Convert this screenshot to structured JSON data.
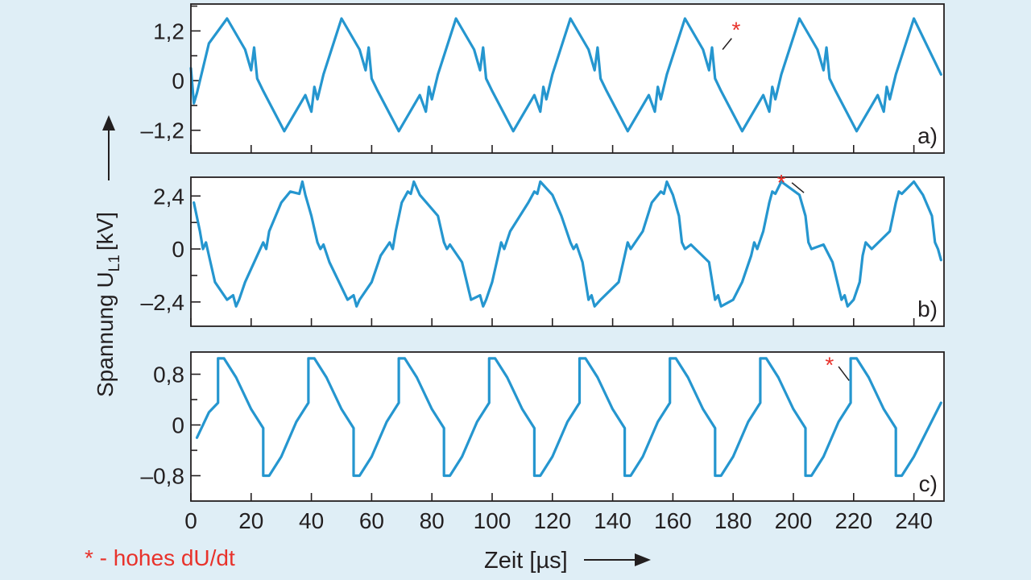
{
  "y_axis_label": "Spannung U",
  "y_axis_label_sub": "L1",
  "y_axis_label_unit": "[kV]",
  "x_axis_label": "Zeit [µs]",
  "footnote": "* - hohes dU/dt",
  "annotation_symbol": "*",
  "colors": {
    "background": "#dfeef6",
    "plot_background": "#ffffff",
    "line": "#2596cf",
    "annotation": "#e8322b",
    "axis": "#231f20"
  },
  "chart_data": [
    {
      "type": "line",
      "panel_label": "a)",
      "xlim": [
        0,
        250
      ],
      "ylim": [
        -1.75,
        1.85
      ],
      "yticks": [
        1.2,
        0,
        -1.2
      ],
      "ytick_labels": [
        "1,2",
        "0",
        "–1,2"
      ],
      "xticks": [
        0,
        20,
        40,
        60,
        80,
        100,
        120,
        140,
        160,
        180,
        200,
        220,
        240
      ],
      "series": [
        {
          "x": [
            0,
            1,
            2,
            6,
            12,
            18,
            20,
            21,
            22,
            24,
            31,
            38,
            40,
            41,
            42,
            44,
            50,
            56,
            58,
            59,
            60,
            62,
            69,
            76,
            78,
            79,
            80,
            82,
            88,
            94,
            96,
            97,
            98,
            100,
            107,
            114,
            116,
            117,
            118,
            120,
            126,
            132,
            134,
            135,
            136,
            138,
            145,
            152,
            154,
            155,
            156,
            158,
            164,
            170,
            172,
            173,
            174,
            176,
            183,
            190,
            192,
            193,
            194,
            196,
            202,
            208,
            210,
            211,
            212,
            214,
            221,
            228,
            230,
            231,
            232,
            234,
            240,
            249
          ],
          "y": [
            0.3,
            -0.55,
            -0.3,
            0.9,
            1.5,
            0.75,
            0.25,
            0.8,
            0.05,
            -0.25,
            -1.22,
            -0.35,
            -0.75,
            -0.15,
            -0.45,
            0.15,
            1.5,
            0.75,
            0.25,
            0.8,
            0.05,
            -0.25,
            -1.22,
            -0.35,
            -0.75,
            -0.15,
            -0.45,
            0.15,
            1.5,
            0.75,
            0.25,
            0.8,
            0.05,
            -0.25,
            -1.22,
            -0.35,
            -0.75,
            -0.15,
            -0.45,
            0.15,
            1.5,
            0.75,
            0.25,
            0.8,
            0.05,
            -0.25,
            -1.22,
            -0.35,
            -0.75,
            -0.15,
            -0.45,
            0.15,
            1.5,
            0.75,
            0.25,
            0.8,
            0.05,
            -0.25,
            -1.22,
            -0.35,
            -0.75,
            -0.15,
            -0.45,
            0.15,
            1.5,
            0.75,
            0.25,
            0.8,
            0.05,
            -0.25,
            -1.22,
            -0.35,
            -0.75,
            -0.15,
            -0.45,
            0.15,
            1.5,
            0.15
          ]
        }
      ],
      "annotations": [
        {
          "text": "*",
          "x": 181,
          "y": 1.28,
          "pointer_from": [
            179.5,
            1.02
          ],
          "pointer_to": [
            176.5,
            0.75
          ]
        }
      ]
    },
    {
      "type": "line",
      "panel_label": "b)",
      "xlim": [
        0,
        250
      ],
      "ylim": [
        -3.5,
        3.25
      ],
      "yticks": [
        2.4,
        0,
        -2.4
      ],
      "ytick_labels": [
        "2,4",
        "0",
        "–2,4"
      ],
      "xticks": [
        0,
        20,
        40,
        60,
        80,
        100,
        120,
        140,
        160,
        180,
        200,
        220,
        240
      ],
      "series": [
        {
          "x": [
            1,
            3,
            4,
            5,
            6,
            8,
            12,
            14,
            15,
            16,
            18,
            22,
            24,
            25,
            26,
            30,
            33,
            36,
            37,
            38,
            40,
            42,
            43,
            44,
            46,
            52,
            54,
            55,
            56,
            60,
            63,
            66,
            67,
            68,
            70,
            72,
            73,
            74,
            76,
            82,
            84,
            85,
            86,
            90,
            93,
            96,
            97,
            98,
            100,
            102,
            103,
            104,
            106,
            112,
            114,
            115,
            116,
            120,
            123,
            126,
            127,
            128,
            130,
            132,
            133,
            134,
            136,
            142,
            144,
            145,
            146,
            150,
            153,
            156,
            157,
            158,
            160,
            162,
            163,
            164,
            166,
            172,
            174,
            175,
            176,
            180,
            183,
            186,
            187,
            188,
            190,
            192,
            193,
            194,
            196,
            202,
            204,
            205,
            206,
            210,
            213,
            216,
            217,
            218,
            220,
            222,
            223,
            224,
            226,
            232,
            234,
            235,
            236,
            240,
            243,
            246,
            247,
            248,
            249
          ],
          "y": [
            2.1,
            0.8,
            0.0,
            0.3,
            -0.3,
            -1.5,
            -2.3,
            -2.1,
            -2.6,
            -2.3,
            -1.5,
            -0.3,
            0.3,
            0.0,
            0.8,
            2.1,
            2.6,
            2.5,
            3.05,
            2.45,
            1.5,
            0.3,
            0.0,
            0.2,
            -0.6,
            -2.3,
            -2.1,
            -2.6,
            -2.3,
            -1.5,
            -0.3,
            0.3,
            0.0,
            0.8,
            2.1,
            2.6,
            2.5,
            3.05,
            2.45,
            1.5,
            0.3,
            0.0,
            0.2,
            -0.6,
            -2.3,
            -2.1,
            -2.6,
            -2.3,
            -1.5,
            -0.3,
            0.3,
            0.0,
            0.8,
            2.1,
            2.6,
            2.5,
            3.05,
            2.45,
            1.5,
            0.3,
            0.0,
            0.2,
            -0.6,
            -2.3,
            -2.1,
            -2.6,
            -2.3,
            -1.5,
            -0.3,
            0.3,
            0.0,
            0.8,
            2.1,
            2.6,
            2.5,
            3.05,
            2.45,
            1.5,
            0.3,
            0.0,
            0.2,
            -0.6,
            -2.3,
            -2.1,
            -2.6,
            -2.3,
            -1.5,
            -0.3,
            0.3,
            0.0,
            0.8,
            2.1,
            2.6,
            2.5,
            3.05,
            2.45,
            1.5,
            0.3,
            0.0,
            0.2,
            -0.6,
            -2.3,
            -2.1,
            -2.6,
            -2.3,
            -1.5,
            -0.3,
            0.3,
            0.0,
            0.8,
            2.1,
            2.6,
            2.5,
            3.05,
            2.45,
            1.5,
            0.3,
            0.0,
            -0.5
          ]
        }
      ],
      "annotations": [
        {
          "text": "*",
          "x": 196,
          "y": 3.1,
          "pointer_from": [
            199.5,
            3.0
          ],
          "pointer_to": [
            203.5,
            2.55
          ]
        }
      ]
    },
    {
      "type": "line",
      "panel_label": "c)",
      "xlim": [
        0,
        250
      ],
      "ylim": [
        -1.2,
        1.15
      ],
      "yticks": [
        0.8,
        0,
        -0.8
      ],
      "ytick_labels": [
        "0,8",
        "0",
        "–0,8"
      ],
      "xticks": [
        0,
        20,
        40,
        60,
        80,
        100,
        120,
        140,
        160,
        180,
        200,
        220,
        240
      ],
      "series": [
        {
          "x": [
            2,
            6,
            9,
            9,
            11,
            15,
            20,
            24,
            24,
            26,
            30,
            35,
            39,
            39,
            41,
            45,
            50,
            54,
            54,
            56,
            60,
            65,
            69,
            69,
            71,
            75,
            80,
            84,
            84,
            86,
            90,
            95,
            99,
            99,
            101,
            105,
            110,
            114,
            114,
            116,
            120,
            125,
            129,
            129,
            131,
            135,
            140,
            144,
            144,
            146,
            150,
            155,
            159,
            159,
            161,
            165,
            170,
            174,
            174,
            176,
            180,
            185,
            189,
            189,
            191,
            195,
            200,
            204,
            204,
            206,
            210,
            215,
            219,
            219,
            221,
            225,
            230,
            234,
            234,
            236,
            240,
            249
          ],
          "y": [
            -0.2,
            0.2,
            0.35,
            1.05,
            1.05,
            0.75,
            0.25,
            -0.05,
            -0.8,
            -0.8,
            -0.5,
            0.05,
            0.35,
            1.05,
            1.05,
            0.75,
            0.25,
            -0.05,
            -0.8,
            -0.8,
            -0.5,
            0.05,
            0.35,
            1.05,
            1.05,
            0.75,
            0.25,
            -0.05,
            -0.8,
            -0.8,
            -0.5,
            0.05,
            0.35,
            1.05,
            1.05,
            0.75,
            0.25,
            -0.05,
            -0.8,
            -0.8,
            -0.5,
            0.05,
            0.35,
            1.05,
            1.05,
            0.75,
            0.25,
            -0.05,
            -0.8,
            -0.8,
            -0.5,
            0.05,
            0.35,
            1.05,
            1.05,
            0.75,
            0.25,
            -0.05,
            -0.8,
            -0.8,
            -0.5,
            0.05,
            0.35,
            1.05,
            1.05,
            0.75,
            0.25,
            -0.05,
            -0.8,
            -0.8,
            -0.5,
            0.05,
            0.35,
            1.05,
            1.05,
            0.75,
            0.25,
            -0.05,
            -0.8,
            -0.8,
            -0.5,
            0.35
          ]
        }
      ],
      "annotations": [
        {
          "text": "*",
          "x": 212,
          "y": 0.98,
          "pointer_from": [
            215,
            0.92
          ],
          "pointer_to": [
            218.5,
            0.7
          ]
        }
      ]
    }
  ],
  "x_tick_labels": [
    "0",
    "20",
    "40",
    "60",
    "80",
    "100",
    "120",
    "140",
    "160",
    "180",
    "200",
    "220",
    "240"
  ]
}
